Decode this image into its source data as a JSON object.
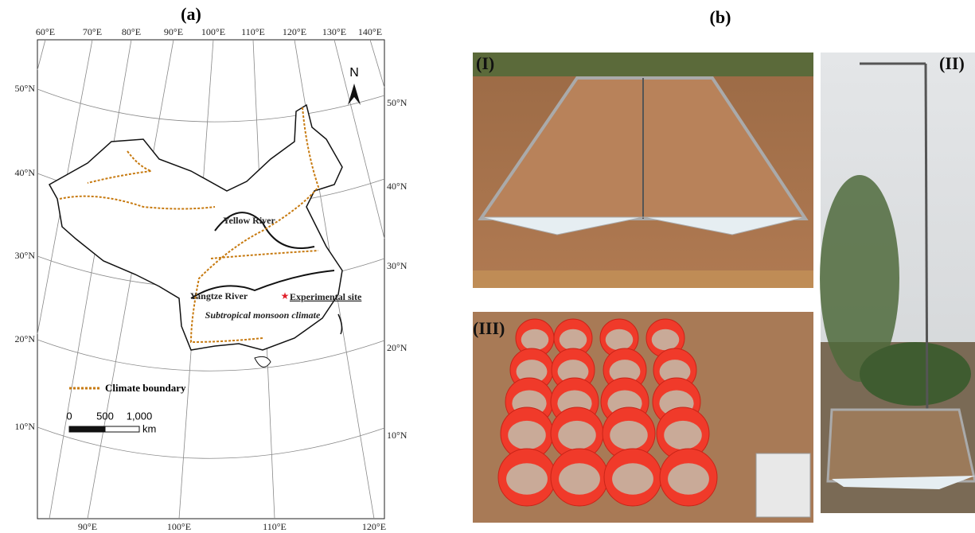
{
  "panel_a": {
    "label": "(a)",
    "top_lon_labels": [
      "60°E",
      "70°E",
      "80°E",
      "90°E",
      "100°E",
      "110°E",
      "120°E",
      "130°E",
      "140°E"
    ],
    "bottom_lon_labels": [
      "90°E",
      "100°E",
      "110°E",
      "120°E"
    ],
    "left_lat_labels": [
      "50°N",
      "40°N",
      "30°N",
      "20°N",
      "10°N"
    ],
    "right_lat_labels": [
      "50°N",
      "40°N",
      "30°N",
      "20°N",
      "10°N"
    ],
    "north": "N",
    "rivers": [
      "Yellow River",
      "Yangtze River"
    ],
    "site": "Experimental site",
    "climate_zone": "Subtropical monsoon climate",
    "legend": "Climate boundary",
    "scale": {
      "ticks": [
        "0",
        "500",
        "1,000"
      ],
      "unit": "km"
    }
  },
  "panel_b": {
    "label": "(b)",
    "photos": [
      "(I)",
      "(II)",
      "(III)"
    ]
  }
}
